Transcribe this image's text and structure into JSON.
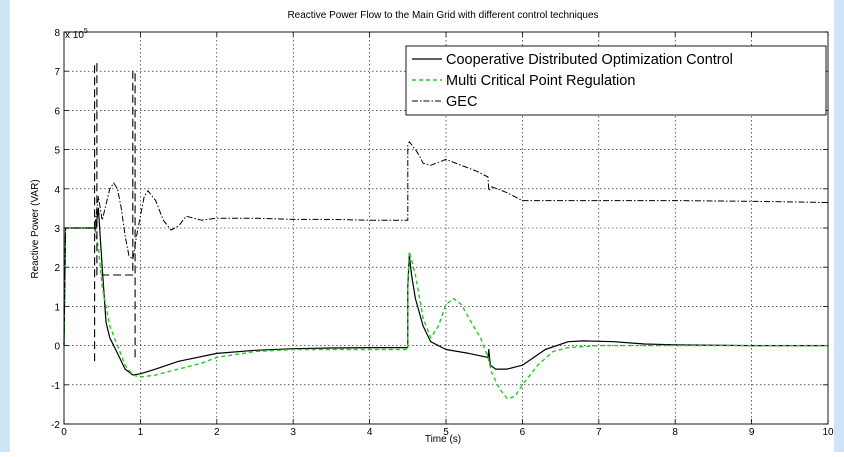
{
  "chart_data": {
    "type": "line",
    "title": "Reactive Power Flow to the Main Grid with different control techniques",
    "xlabel": "Time (s)",
    "ylabel": "Reactive Power (VAR)",
    "y_multiplier_label": "x 10",
    "y_multiplier_exponent": "5",
    "xlim": [
      0,
      10
    ],
    "ylim": [
      -2,
      8
    ],
    "xticks": [
      "0",
      "1",
      "2",
      "3",
      "4",
      "5",
      "6",
      "7",
      "8",
      "9",
      "10"
    ],
    "yticks": [
      "-2",
      "-1",
      "0",
      "1",
      "2",
      "3",
      "4",
      "5",
      "6",
      "7",
      "8"
    ],
    "grid": true,
    "legend_position": "top-right",
    "colors": {
      "axis": "#000000",
      "grid": "#000000",
      "background": "#ffffff"
    },
    "series": [
      {
        "name": "Cooperative Distributed Optimization Control",
        "color": "#000000",
        "dash": "solid",
        "points": [
          [
            0,
            0
          ],
          [
            0.02,
            3
          ],
          [
            0.4,
            3
          ],
          [
            0.41,
            2.9
          ],
          [
            0.45,
            3.5
          ],
          [
            0.5,
            2
          ],
          [
            0.55,
            0.6
          ],
          [
            0.6,
            0.2
          ],
          [
            0.7,
            -0.2
          ],
          [
            0.8,
            -0.6
          ],
          [
            0.9,
            -0.75
          ],
          [
            1.0,
            -0.72
          ],
          [
            1.2,
            -0.6
          ],
          [
            1.5,
            -0.4
          ],
          [
            2,
            -0.2
          ],
          [
            2.5,
            -0.12
          ],
          [
            3,
            -0.08
          ],
          [
            3.5,
            -0.06
          ],
          [
            4,
            -0.05
          ],
          [
            4.5,
            -0.05
          ],
          [
            4.5,
            1.5
          ],
          [
            4.52,
            2.3
          ],
          [
            4.55,
            1.8
          ],
          [
            4.6,
            1.2
          ],
          [
            4.7,
            0.5
          ],
          [
            4.8,
            0.1
          ],
          [
            5,
            -0.1
          ],
          [
            5.3,
            -0.2
          ],
          [
            5.55,
            -0.3
          ],
          [
            5.56,
            -0.1
          ],
          [
            5.58,
            -0.5
          ],
          [
            5.65,
            -0.6
          ],
          [
            5.8,
            -0.6
          ],
          [
            6.0,
            -0.5
          ],
          [
            6.3,
            -0.1
          ],
          [
            6.6,
            0.1
          ],
          [
            6.8,
            0.12
          ],
          [
            7.2,
            0.1
          ],
          [
            7.6,
            0.04
          ],
          [
            8,
            0.02
          ],
          [
            9,
            0
          ],
          [
            10,
            0
          ]
        ]
      },
      {
        "name": "Multi Critical Point Regulation",
        "color": "#22cc22",
        "dash": "dashed",
        "points": [
          [
            0,
            0
          ],
          [
            0.02,
            3
          ],
          [
            0.4,
            3
          ],
          [
            0.45,
            2.5
          ],
          [
            0.5,
            1.5
          ],
          [
            0.6,
            0.5
          ],
          [
            0.7,
            0
          ],
          [
            0.8,
            -0.5
          ],
          [
            0.9,
            -0.75
          ],
          [
            1.0,
            -0.8
          ],
          [
            1.2,
            -0.75
          ],
          [
            1.5,
            -0.6
          ],
          [
            1.8,
            -0.45
          ],
          [
            2,
            -0.3
          ],
          [
            2.5,
            -0.15
          ],
          [
            3,
            -0.1
          ],
          [
            3.5,
            -0.1
          ],
          [
            4,
            -0.1
          ],
          [
            4.5,
            -0.1
          ],
          [
            4.5,
            1.5
          ],
          [
            4.52,
            2.4
          ],
          [
            4.6,
            1.8
          ],
          [
            4.7,
            0.7
          ],
          [
            4.8,
            0.2
          ],
          [
            4.9,
            0.5
          ],
          [
            5,
            1.05
          ],
          [
            5.1,
            1.2
          ],
          [
            5.2,
            1.05
          ],
          [
            5.3,
            0.7
          ],
          [
            5.45,
            0.2
          ],
          [
            5.55,
            -0.3
          ],
          [
            5.6,
            -0.7
          ],
          [
            5.7,
            -1.1
          ],
          [
            5.8,
            -1.35
          ],
          [
            5.9,
            -1.3
          ],
          [
            6.0,
            -1.0
          ],
          [
            6.2,
            -0.5
          ],
          [
            6.4,
            -0.15
          ],
          [
            6.6,
            -0.05
          ],
          [
            7,
            0
          ],
          [
            8,
            0
          ],
          [
            9,
            0
          ],
          [
            10,
            0
          ]
        ]
      },
      {
        "name": "GEC",
        "color": "#000000",
        "dash": "dashdot",
        "points": [
          [
            0,
            0
          ],
          [
            0.02,
            3
          ],
          [
            0.4,
            3
          ],
          [
            0.45,
            3.8
          ],
          [
            0.5,
            3.2
          ],
          [
            0.55,
            3.6
          ],
          [
            0.6,
            4
          ],
          [
            0.65,
            4.15
          ],
          [
            0.7,
            4
          ],
          [
            0.75,
            3.5
          ],
          [
            0.8,
            2.8
          ],
          [
            0.85,
            2.3
          ],
          [
            0.9,
            2.2
          ],
          [
            0.95,
            2.8
          ],
          [
            1.05,
            3.8
          ],
          [
            1.1,
            3.95
          ],
          [
            1.2,
            3.7
          ],
          [
            1.3,
            3.2
          ],
          [
            1.4,
            2.95
          ],
          [
            1.5,
            3.05
          ],
          [
            1.6,
            3.3
          ],
          [
            1.8,
            3.2
          ],
          [
            2,
            3.25
          ],
          [
            2.5,
            3.25
          ],
          [
            3,
            3.22
          ],
          [
            3.5,
            3.22
          ],
          [
            4,
            3.2
          ],
          [
            4.5,
            3.2
          ],
          [
            4.5,
            5.1
          ],
          [
            4.52,
            5.2
          ],
          [
            4.6,
            5.0
          ],
          [
            4.65,
            4.85
          ],
          [
            4.7,
            4.65
          ],
          [
            4.8,
            4.6
          ],
          [
            5,
            4.75
          ],
          [
            5.2,
            4.6
          ],
          [
            5.4,
            4.45
          ],
          [
            5.55,
            4.3
          ],
          [
            5.56,
            3.95
          ],
          [
            5.6,
            4.05
          ],
          [
            5.8,
            3.9
          ],
          [
            6.0,
            3.7
          ],
          [
            6.5,
            3.7
          ],
          [
            7,
            3.7
          ],
          [
            8,
            3.7
          ],
          [
            9,
            3.68
          ],
          [
            10,
            3.65
          ]
        ]
      },
      {
        "name": "",
        "color": "#000000",
        "dash": "longdash",
        "points": [
          [
            0.4,
            -0.4
          ],
          [
            0.4,
            7.2
          ],
          [
            0.43,
            7.2
          ],
          [
            0.43,
            1.8
          ],
          [
            0.55,
            1.8
          ],
          [
            0.85,
            1.8
          ],
          [
            0.9,
            1.8
          ],
          [
            0.9,
            7.0
          ],
          [
            0.93,
            7.0
          ],
          [
            0.93,
            -0.4
          ]
        ]
      }
    ]
  }
}
